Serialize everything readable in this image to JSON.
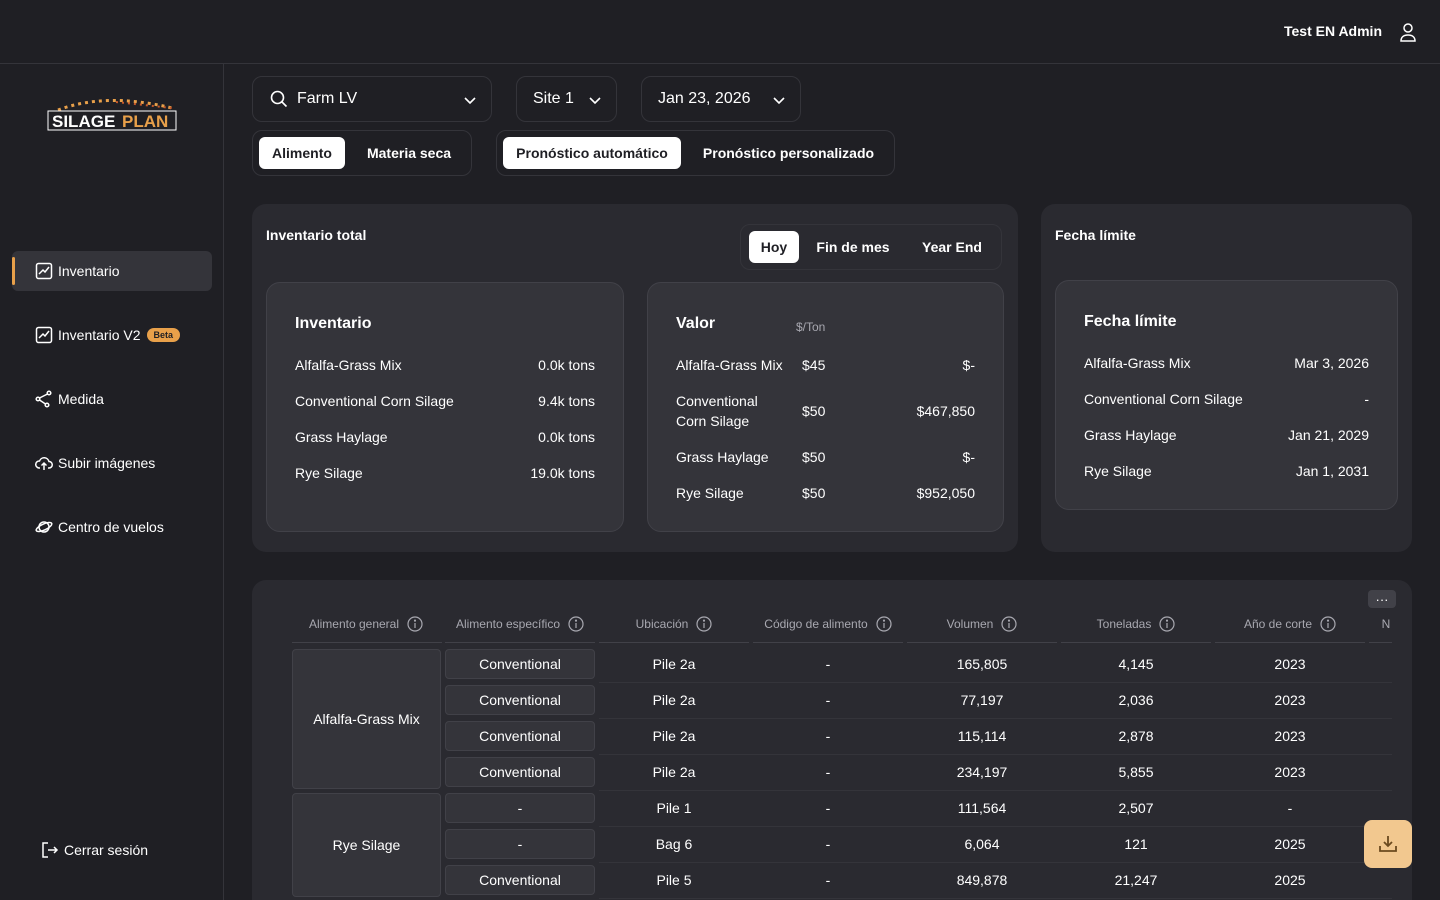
{
  "header": {
    "user_name": "Test EN Admin"
  },
  "sidebar": {
    "logo_text": "SILAGEPLAN",
    "items": [
      {
        "label": "Inventario",
        "icon": "chart-icon",
        "active": true
      },
      {
        "label": "Inventario V2",
        "icon": "chart-icon",
        "badge": "Beta"
      },
      {
        "label": "Medida",
        "icon": "measure-icon"
      },
      {
        "label": "Subir imágenes",
        "icon": "cloud-upload-icon"
      },
      {
        "label": "Centro de vuelos",
        "icon": "planet-icon"
      }
    ],
    "logout_label": "Cerrar sesión"
  },
  "filters": {
    "farm": "Farm LV",
    "site": "Site 1",
    "date": "Jan 23, 2026",
    "unit_toggle": [
      "Alimento",
      "Materia seca"
    ],
    "unit_selected": "Alimento",
    "forecast_toggle": [
      "Pronóstico automático",
      "Pronóstico personalizado"
    ],
    "forecast_selected": "Pronóstico automático"
  },
  "inventory_total": {
    "title": "Inventario total",
    "periods": [
      "Hoy",
      "Fin de mes",
      "Year End"
    ],
    "period_selected": "Hoy",
    "inventory": {
      "title": "Inventario",
      "rows": [
        {
          "name": "Alfalfa-Grass Mix",
          "value": "0.0k tons"
        },
        {
          "name": "Conventional Corn Silage",
          "value": "9.4k tons"
        },
        {
          "name": "Grass Haylage",
          "value": "0.0k tons"
        },
        {
          "name": "Rye Silage",
          "value": "19.0k tons"
        }
      ]
    },
    "value": {
      "title": "Valor",
      "unit": "$/Ton",
      "rows": [
        {
          "name": "Alfalfa-Grass Mix",
          "price": "$45",
          "total": "$-"
        },
        {
          "name": "Conventional Corn Silage",
          "price": "$50",
          "total": "$467,850"
        },
        {
          "name": "Grass Haylage",
          "price": "$50",
          "total": "$-"
        },
        {
          "name": "Rye Silage",
          "price": "$50",
          "total": "$952,050"
        }
      ]
    }
  },
  "deadline": {
    "title": "Fecha límite",
    "inner_title": "Fecha límite",
    "rows": [
      {
        "name": "Alfalfa-Grass Mix",
        "date": "Mar 3, 2026"
      },
      {
        "name": "Conventional Corn Silage",
        "date": "-"
      },
      {
        "name": "Grass Haylage",
        "date": "Jan 21, 2029"
      },
      {
        "name": "Rye Silage",
        "date": "Jan 1, 2031"
      }
    ]
  },
  "table": {
    "more_label": "···",
    "columns": [
      "Alimento general",
      "Alimento específico",
      "Ubicación",
      "Código de alimento",
      "Volumen",
      "Toneladas",
      "Año de corte",
      "N"
    ],
    "groups": [
      {
        "name": "Alfalfa-Grass Mix",
        "rows": [
          {
            "specific": "Conventional",
            "location": "Pile 2a",
            "code": "-",
            "volume": "165,805",
            "tons": "4,145",
            "year": "2023"
          },
          {
            "specific": "Conventional",
            "location": "Pile 2a",
            "code": "-",
            "volume": "77,197",
            "tons": "2,036",
            "year": "2023"
          },
          {
            "specific": "Conventional",
            "location": "Pile 2a",
            "code": "-",
            "volume": "115,114",
            "tons": "2,878",
            "year": "2023"
          },
          {
            "specific": "Conventional",
            "location": "Pile 2a",
            "code": "-",
            "volume": "234,197",
            "tons": "5,855",
            "year": "2023"
          }
        ]
      },
      {
        "name": "Rye Silage",
        "rows": [
          {
            "specific": "-",
            "location": "Pile 1",
            "code": "-",
            "volume": "111,564",
            "tons": "2,507",
            "year": "-"
          },
          {
            "specific": "-",
            "location": "Bag 6",
            "code": "-",
            "volume": "6,064",
            "tons": "121",
            "year": "2025"
          },
          {
            "specific": "Conventional",
            "location": "Pile 5",
            "code": "-",
            "volume": "849,878",
            "tons": "21,247",
            "year": "2025"
          }
        ]
      }
    ]
  },
  "colors": {
    "accent": "#e8a04a",
    "background": "#1f1f24",
    "card": "#2a2a30",
    "inner": "#34343a",
    "download": "#f2c88f"
  }
}
